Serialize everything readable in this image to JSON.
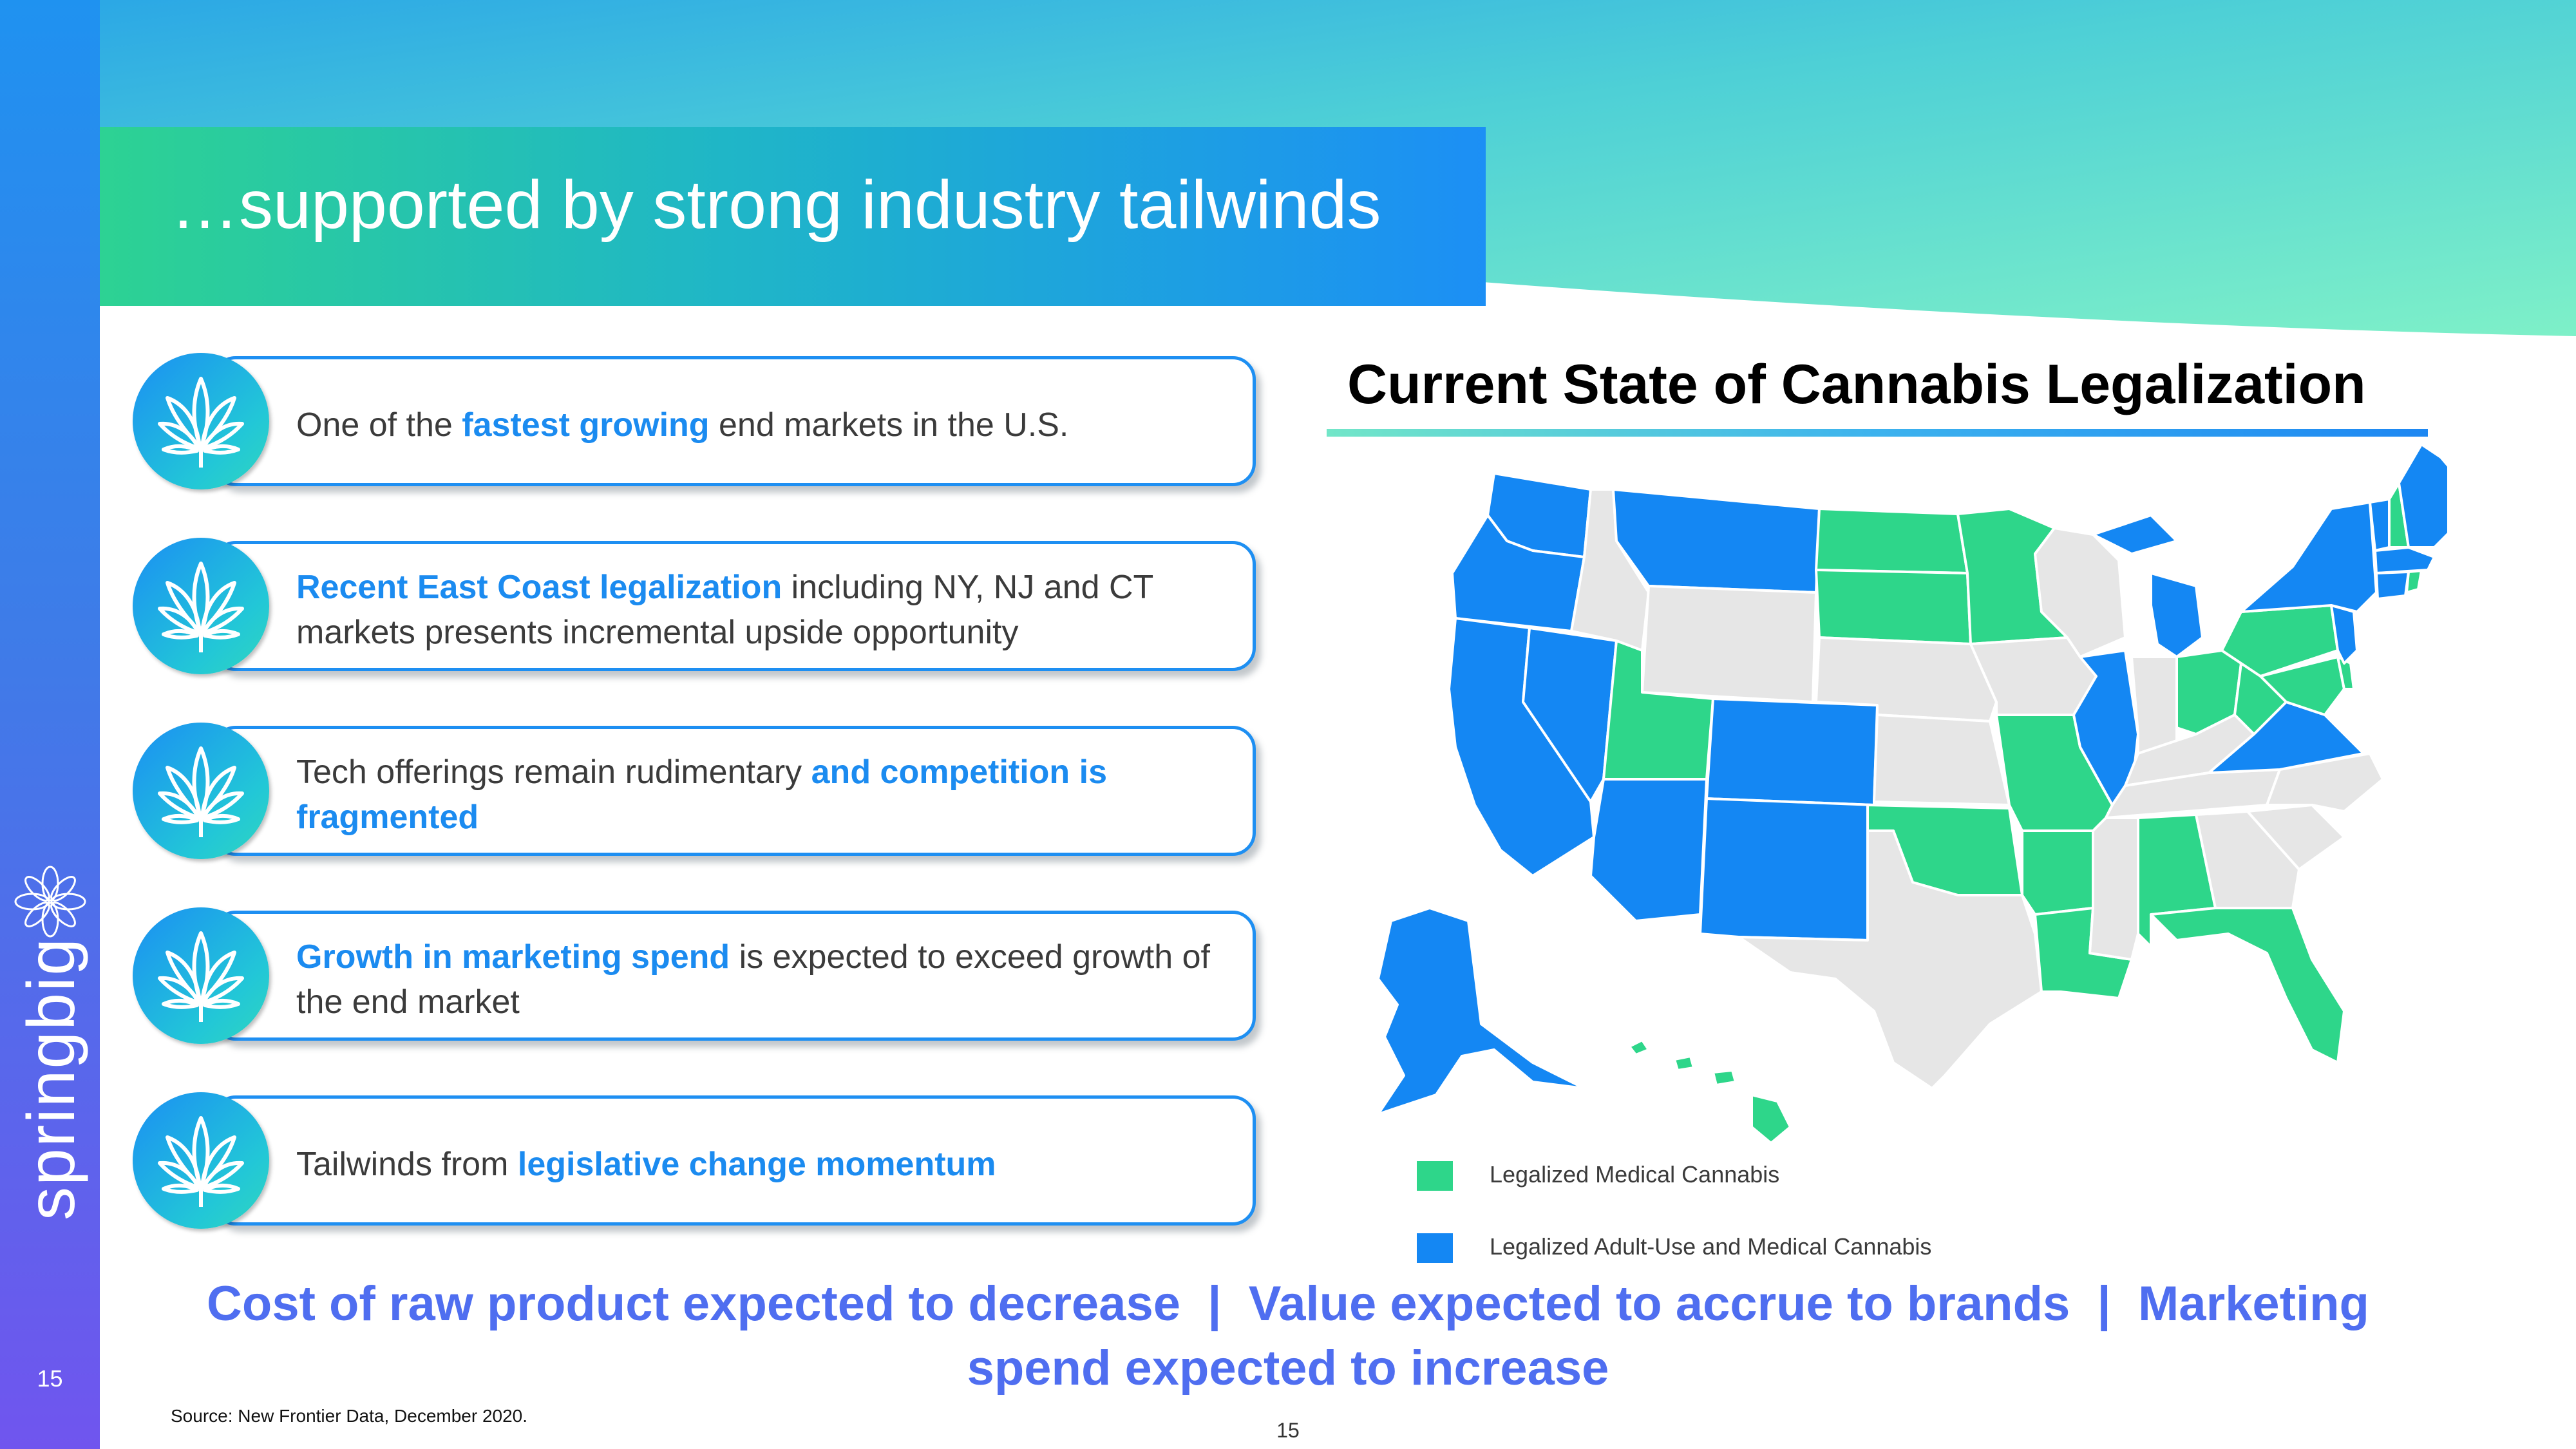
{
  "slide": {
    "title": "…supported by strong industry tailwinds",
    "page_number": "15",
    "sidebar_page_number": "15",
    "brand": "springbig",
    "source": "Source: New Frontier Data, December 2020."
  },
  "cards": [
    {
      "pre": "One of the ",
      "hl": "fastest growing",
      "post": " end markets in the U.S."
    },
    {
      "hl": "Recent East Coast legalization",
      "post": " including NY, NJ and CT markets presents incremental upside opportunity"
    },
    {
      "pre": "Tech offerings remain rudimentary ",
      "hl": "and competition is fragmented"
    },
    {
      "hl": "Growth in marketing spend",
      "post": " is expected to exceed growth of the end market"
    },
    {
      "pre": "Tailwinds from ",
      "hl": "legislative change momentum"
    }
  ],
  "map": {
    "title": "Current State of Cannabis Legalization",
    "legend": [
      {
        "label": "Legalized Medical Cannabis",
        "color": "#2ed68a"
      },
      {
        "label": "Legalized Adult-Use and Medical Cannabis",
        "color": "#1487f3"
      }
    ],
    "colors": {
      "medical": "#2ed68a",
      "adult_use": "#1487f3",
      "none": "#e6e6e6"
    }
  },
  "bottom": {
    "line1": "Cost of raw product expected to decrease  |  Value expected to accrue to brands  |  Marketing",
    "line2": "spend expected to increase"
  },
  "theme": {
    "accent": "#1b8bf0",
    "green": "#2dd293",
    "purple": "#7055ee"
  }
}
